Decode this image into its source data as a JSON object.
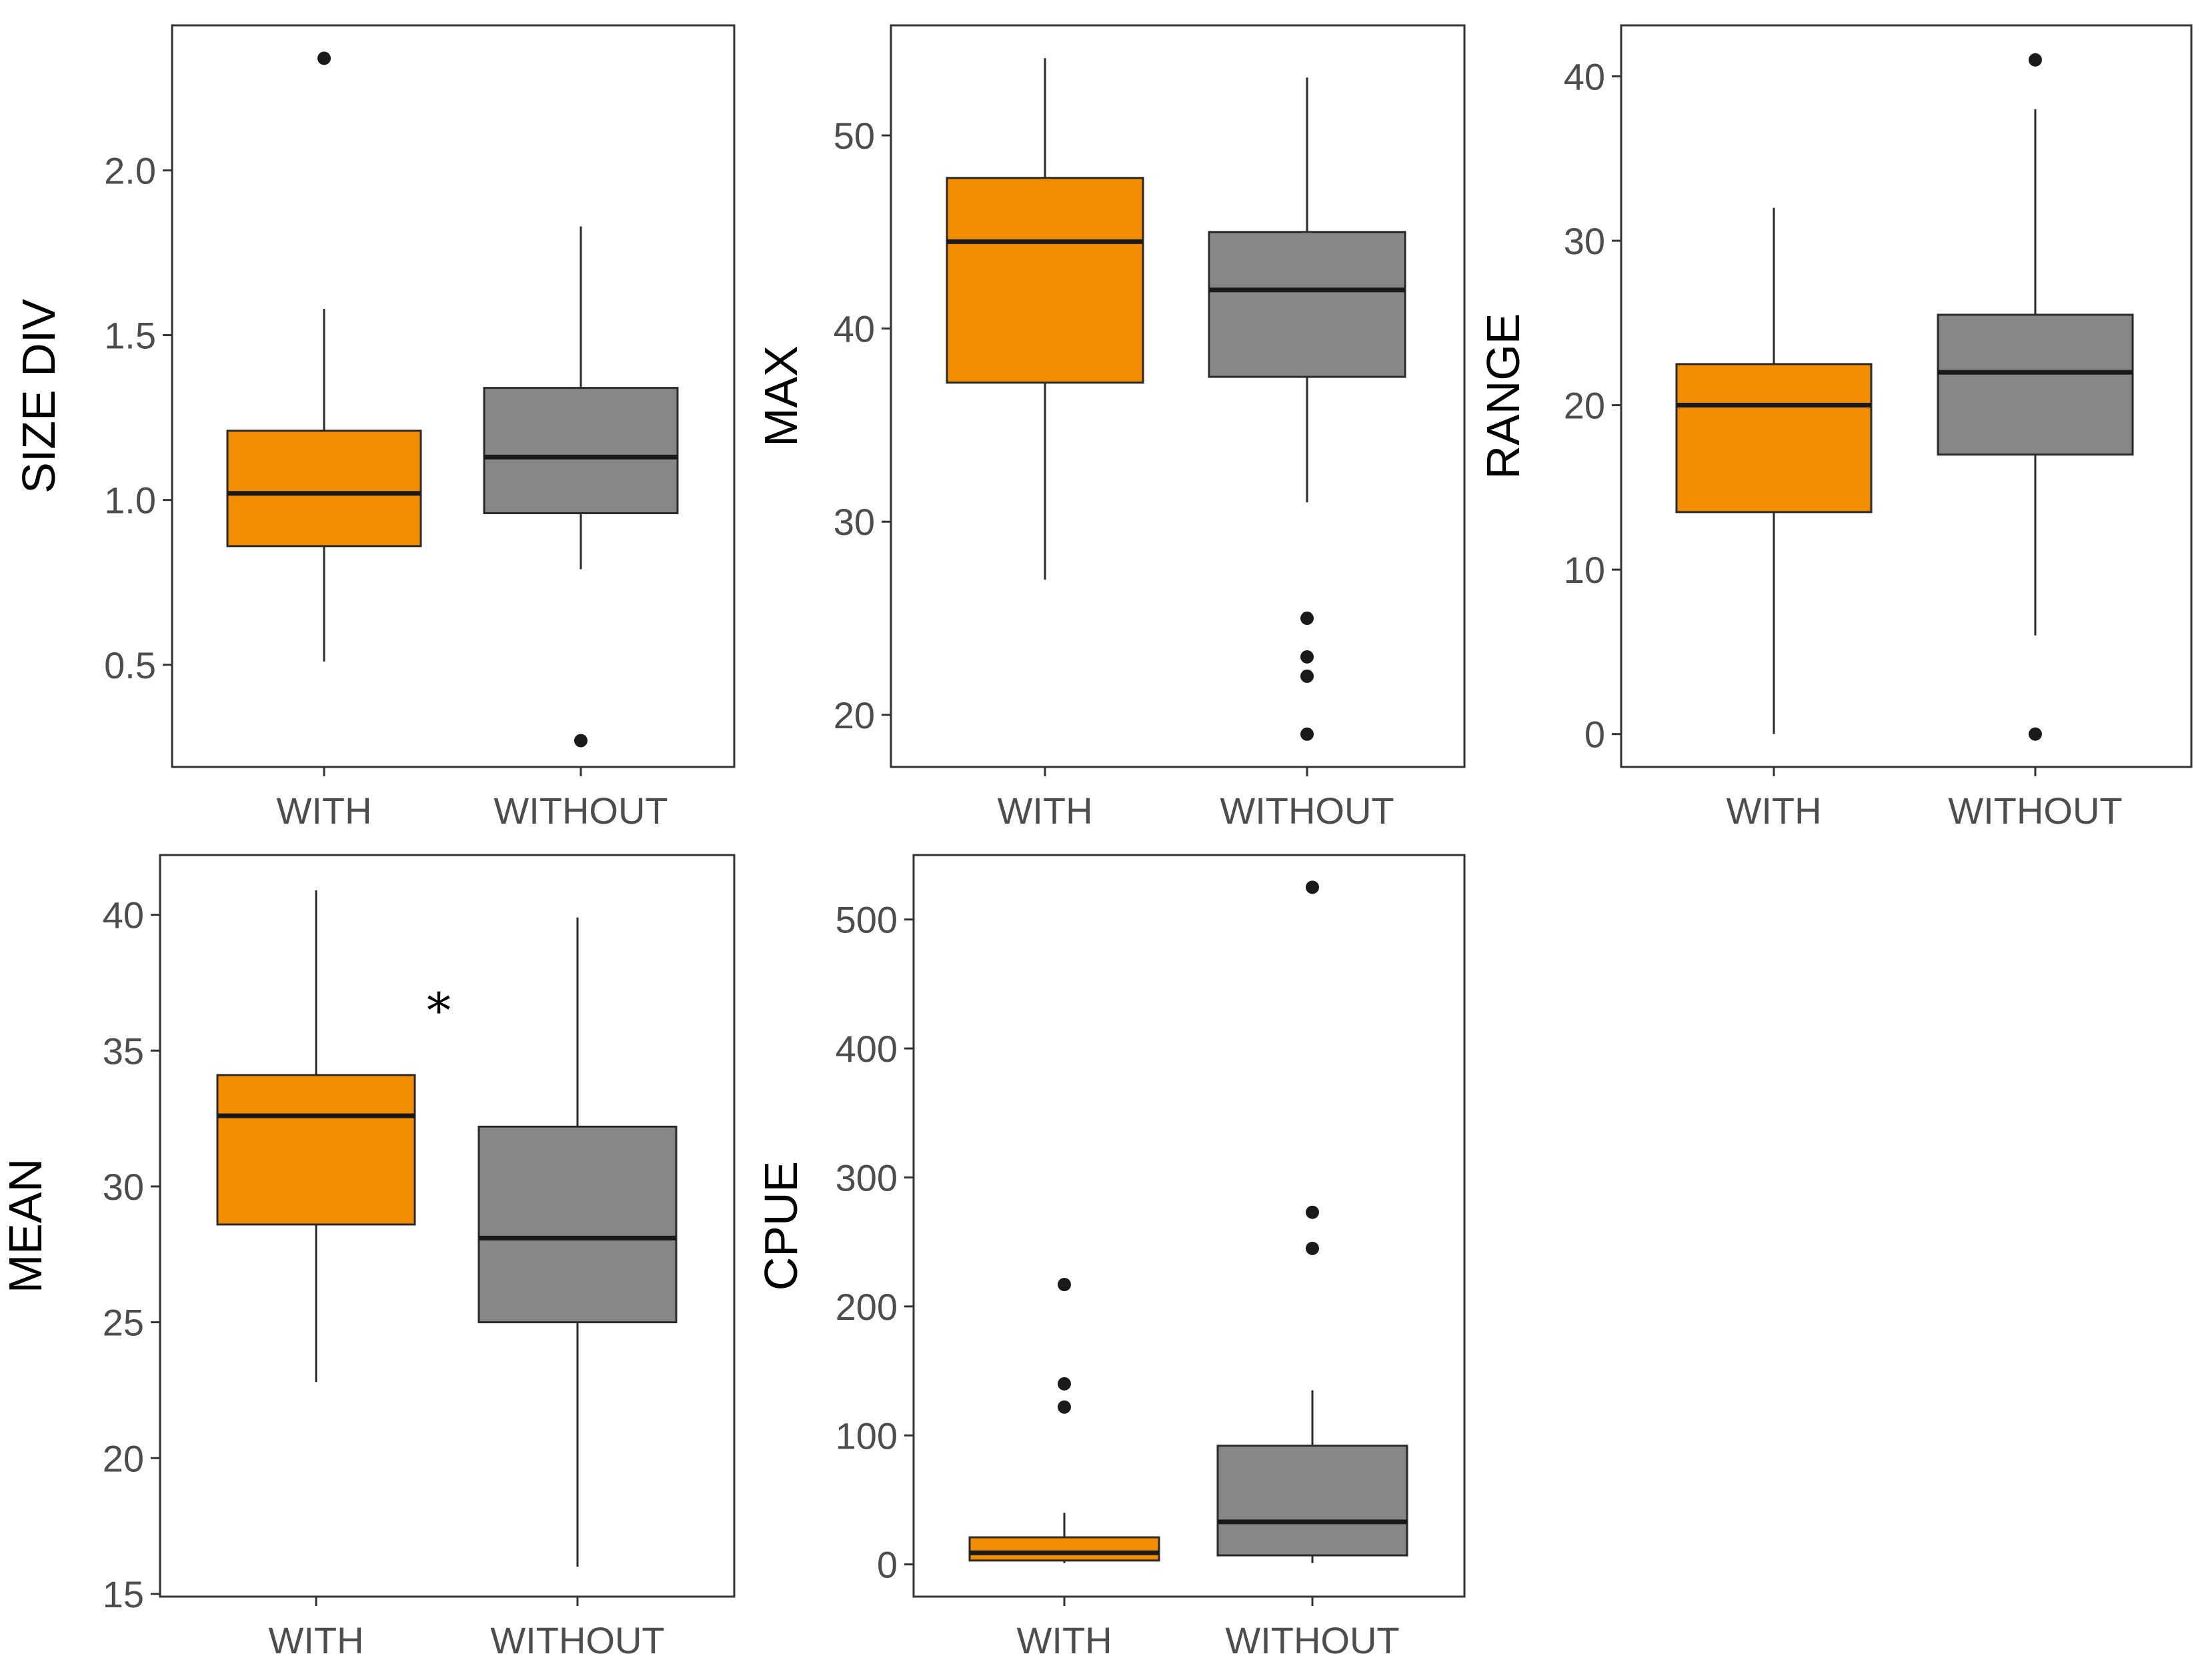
{
  "colors": {
    "with_fill": "#f28c00",
    "without_fill": "#878787",
    "box_stroke": "#2a2a2a",
    "median_stroke": "#1a1a1a",
    "panel_border": "#333333",
    "tick_text": "#4d4d4d"
  },
  "chart_data": [
    {
      "type": "boxplot",
      "ylabel": "SIZE DIV",
      "categories": [
        "WITH",
        "WITHOUT"
      ],
      "ylim": [
        0.19,
        2.44
      ],
      "yticks": [
        0.5,
        1.0,
        1.5,
        2.0
      ],
      "ytick_labels": [
        "0.5",
        "1.0",
        "1.5",
        "2.0"
      ],
      "boxes": [
        {
          "name": "WITH",
          "lower_whisker": 0.51,
          "q1": 0.86,
          "median": 1.02,
          "q3": 1.21,
          "upper_whisker": 1.58,
          "outliers": [
            2.34
          ]
        },
        {
          "name": "WITHOUT",
          "lower_whisker": 0.79,
          "q1": 0.96,
          "median": 1.13,
          "q3": 1.34,
          "upper_whisker": 1.83,
          "outliers": [
            0.27
          ]
        }
      ]
    },
    {
      "type": "boxplot",
      "ylabel": "MAX",
      "categories": [
        "WITH",
        "WITHOUT"
      ],
      "ylim": [
        17.3,
        55.7
      ],
      "yticks": [
        20,
        30,
        40,
        50
      ],
      "ytick_labels": [
        "20",
        "30",
        "40",
        "50"
      ],
      "boxes": [
        {
          "name": "WITH",
          "lower_whisker": 27,
          "q1": 37.2,
          "median": 44.5,
          "q3": 47.8,
          "upper_whisker": 54,
          "outliers": []
        },
        {
          "name": "WITHOUT",
          "lower_whisker": 31,
          "q1": 37.5,
          "median": 42,
          "q3": 45,
          "upper_whisker": 53,
          "outliers": [
            25,
            23,
            22,
            19
          ]
        }
      ]
    },
    {
      "type": "boxplot",
      "ylabel": "RANGE",
      "categories": [
        "WITH",
        "WITHOUT"
      ],
      "ylim": [
        -2.0,
        43.1
      ],
      "yticks": [
        0,
        10,
        20,
        30,
        40
      ],
      "ytick_labels": [
        "0",
        "10",
        "20",
        "30",
        "40"
      ],
      "boxes": [
        {
          "name": "WITH",
          "lower_whisker": 0,
          "q1": 13.5,
          "median": 20,
          "q3": 22.5,
          "upper_whisker": 32,
          "outliers": []
        },
        {
          "name": "WITHOUT",
          "lower_whisker": 6,
          "q1": 17,
          "median": 22,
          "q3": 25.5,
          "upper_whisker": 38,
          "outliers": [
            41,
            0
          ]
        }
      ]
    },
    {
      "type": "boxplot",
      "ylabel": "MEAN",
      "categories": [
        "WITH",
        "WITHOUT"
      ],
      "ylim": [
        14.9,
        42.2
      ],
      "yticks": [
        15,
        20,
        25,
        30,
        35,
        40
      ],
      "ytick_labels": [
        "15",
        "20",
        "25",
        "30",
        "35",
        "40"
      ],
      "annotation": "*",
      "boxes": [
        {
          "name": "WITH",
          "lower_whisker": 22.8,
          "q1": 28.6,
          "median": 32.6,
          "q3": 34.1,
          "upper_whisker": 40.9,
          "outliers": []
        },
        {
          "name": "WITHOUT",
          "lower_whisker": 16.0,
          "q1": 25.0,
          "median": 28.1,
          "q3": 32.2,
          "upper_whisker": 39.9,
          "outliers": []
        }
      ]
    },
    {
      "type": "boxplot",
      "ylabel": "CPUE",
      "categories": [
        "WITH",
        "WITHOUT"
      ],
      "ylim": [
        -25,
        550
      ],
      "yticks": [
        0,
        100,
        200,
        300,
        400,
        500
      ],
      "ytick_labels": [
        "0",
        "100",
        "200",
        "300",
        "400",
        "500"
      ],
      "boxes": [
        {
          "name": "WITH",
          "lower_whisker": 1,
          "q1": 3,
          "median": 9,
          "q3": 21,
          "upper_whisker": 40,
          "outliers": [
            217,
            140,
            122
          ]
        },
        {
          "name": "WITHOUT",
          "lower_whisker": 1,
          "q1": 7,
          "median": 33,
          "q3": 92,
          "upper_whisker": 135,
          "outliers": [
            525,
            273,
            245
          ]
        }
      ]
    }
  ]
}
